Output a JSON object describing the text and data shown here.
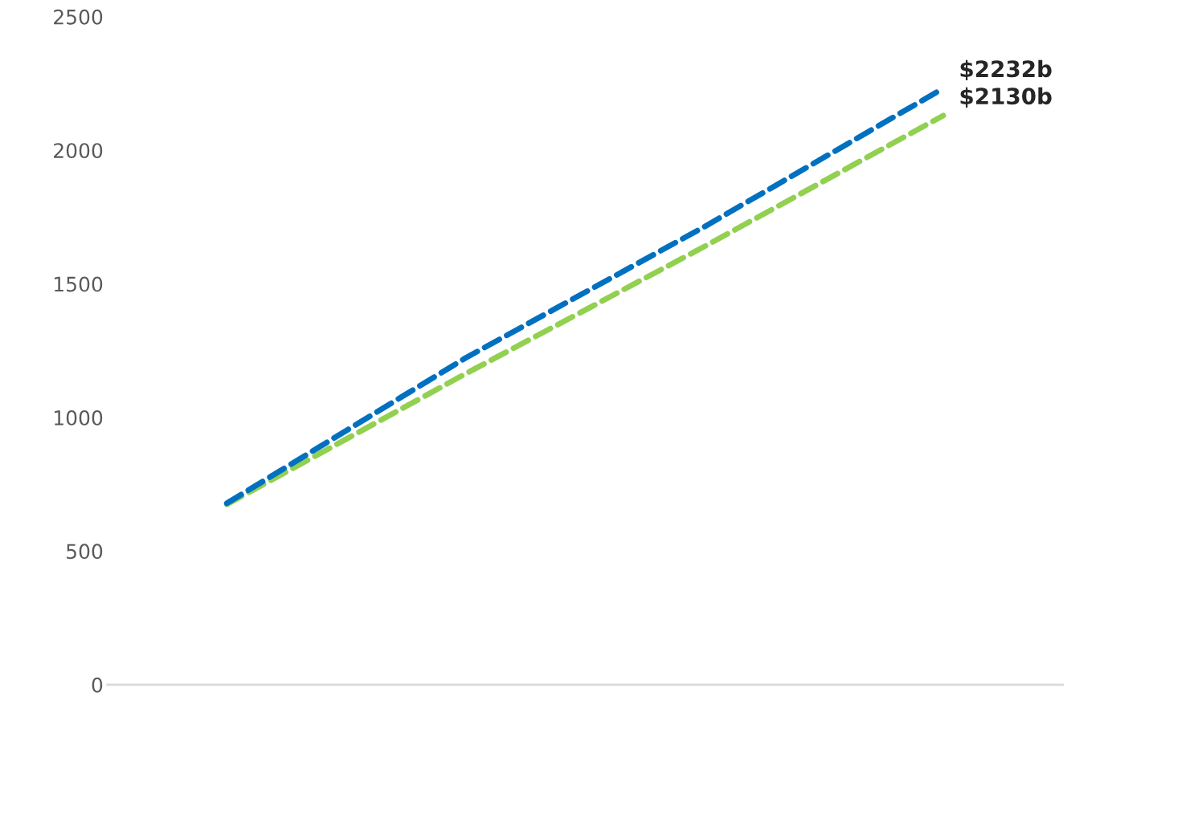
{
  "chart_data": {
    "type": "line",
    "categories": [
      null,
      null,
      null,
      null
    ],
    "series": [
      {
        "color": "#92d050",
        "values": [
          675,
          1164,
          1640,
          2130
        ],
        "value_labels": [
          null,
          null,
          null,
          "$2130b"
        ]
      },
      {
        "color": "#0070c0",
        "values": [
          679,
          1223,
          1714,
          2232
        ],
        "value_labels": [
          null,
          null,
          null,
          "$2232b"
        ]
      }
    ],
    "ylim": [
      0,
      2500
    ],
    "yticks": [
      0,
      500,
      1000,
      1500,
      2000,
      2500
    ],
    "grid": false,
    "legend": false,
    "line_style": "dashed",
    "marker": "none"
  }
}
